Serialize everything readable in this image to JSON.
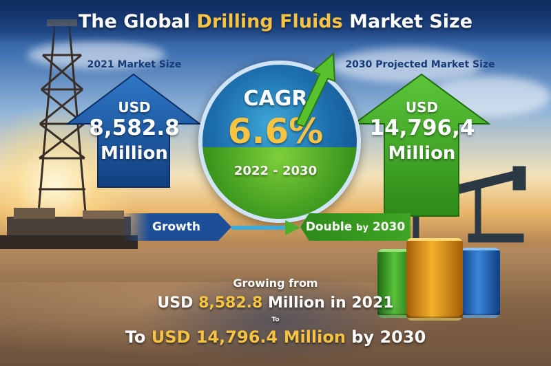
{
  "title": {
    "prefix": "The Global ",
    "highlight": "Drilling Fluids",
    "suffix": " Market Size"
  },
  "left": {
    "label": "2021 Market Size",
    "currency": "USD",
    "value": "8,582.8",
    "unit": "Million"
  },
  "right": {
    "label": "2030 Projected Market Size",
    "currency": "USD",
    "value": "14,796,4",
    "unit": "Million"
  },
  "center": {
    "label": "CAGR",
    "value": "6.6%",
    "period": "2022 - 2030"
  },
  "flow": {
    "growth": "Growth",
    "double_prefix": "Double",
    "double_by": "by",
    "double_year": "2030"
  },
  "bottom": {
    "line1": "Growing from",
    "line2_prefix": "USD ",
    "line2_value": "8,582.8",
    "line2_suffix": " Million in 2021",
    "to_small": "To",
    "line3_prefix": "To ",
    "line3_value": "USD 14,796.4 Million",
    "line3_suffix": " by 2030"
  },
  "colors": {
    "title_highlight": "#f6c343",
    "blue_arrow": "#1e5aa8",
    "green_arrow": "#4caf2a",
    "circle_blue": "#1d6fae",
    "circle_green": "#3f9a1e"
  },
  "icons": {
    "rig": "drilling-rig-icon",
    "pumpjack": "pumpjack-icon",
    "barrels": "oil-barrel-icon",
    "growth_arrow": "trend-arrow-icon"
  }
}
